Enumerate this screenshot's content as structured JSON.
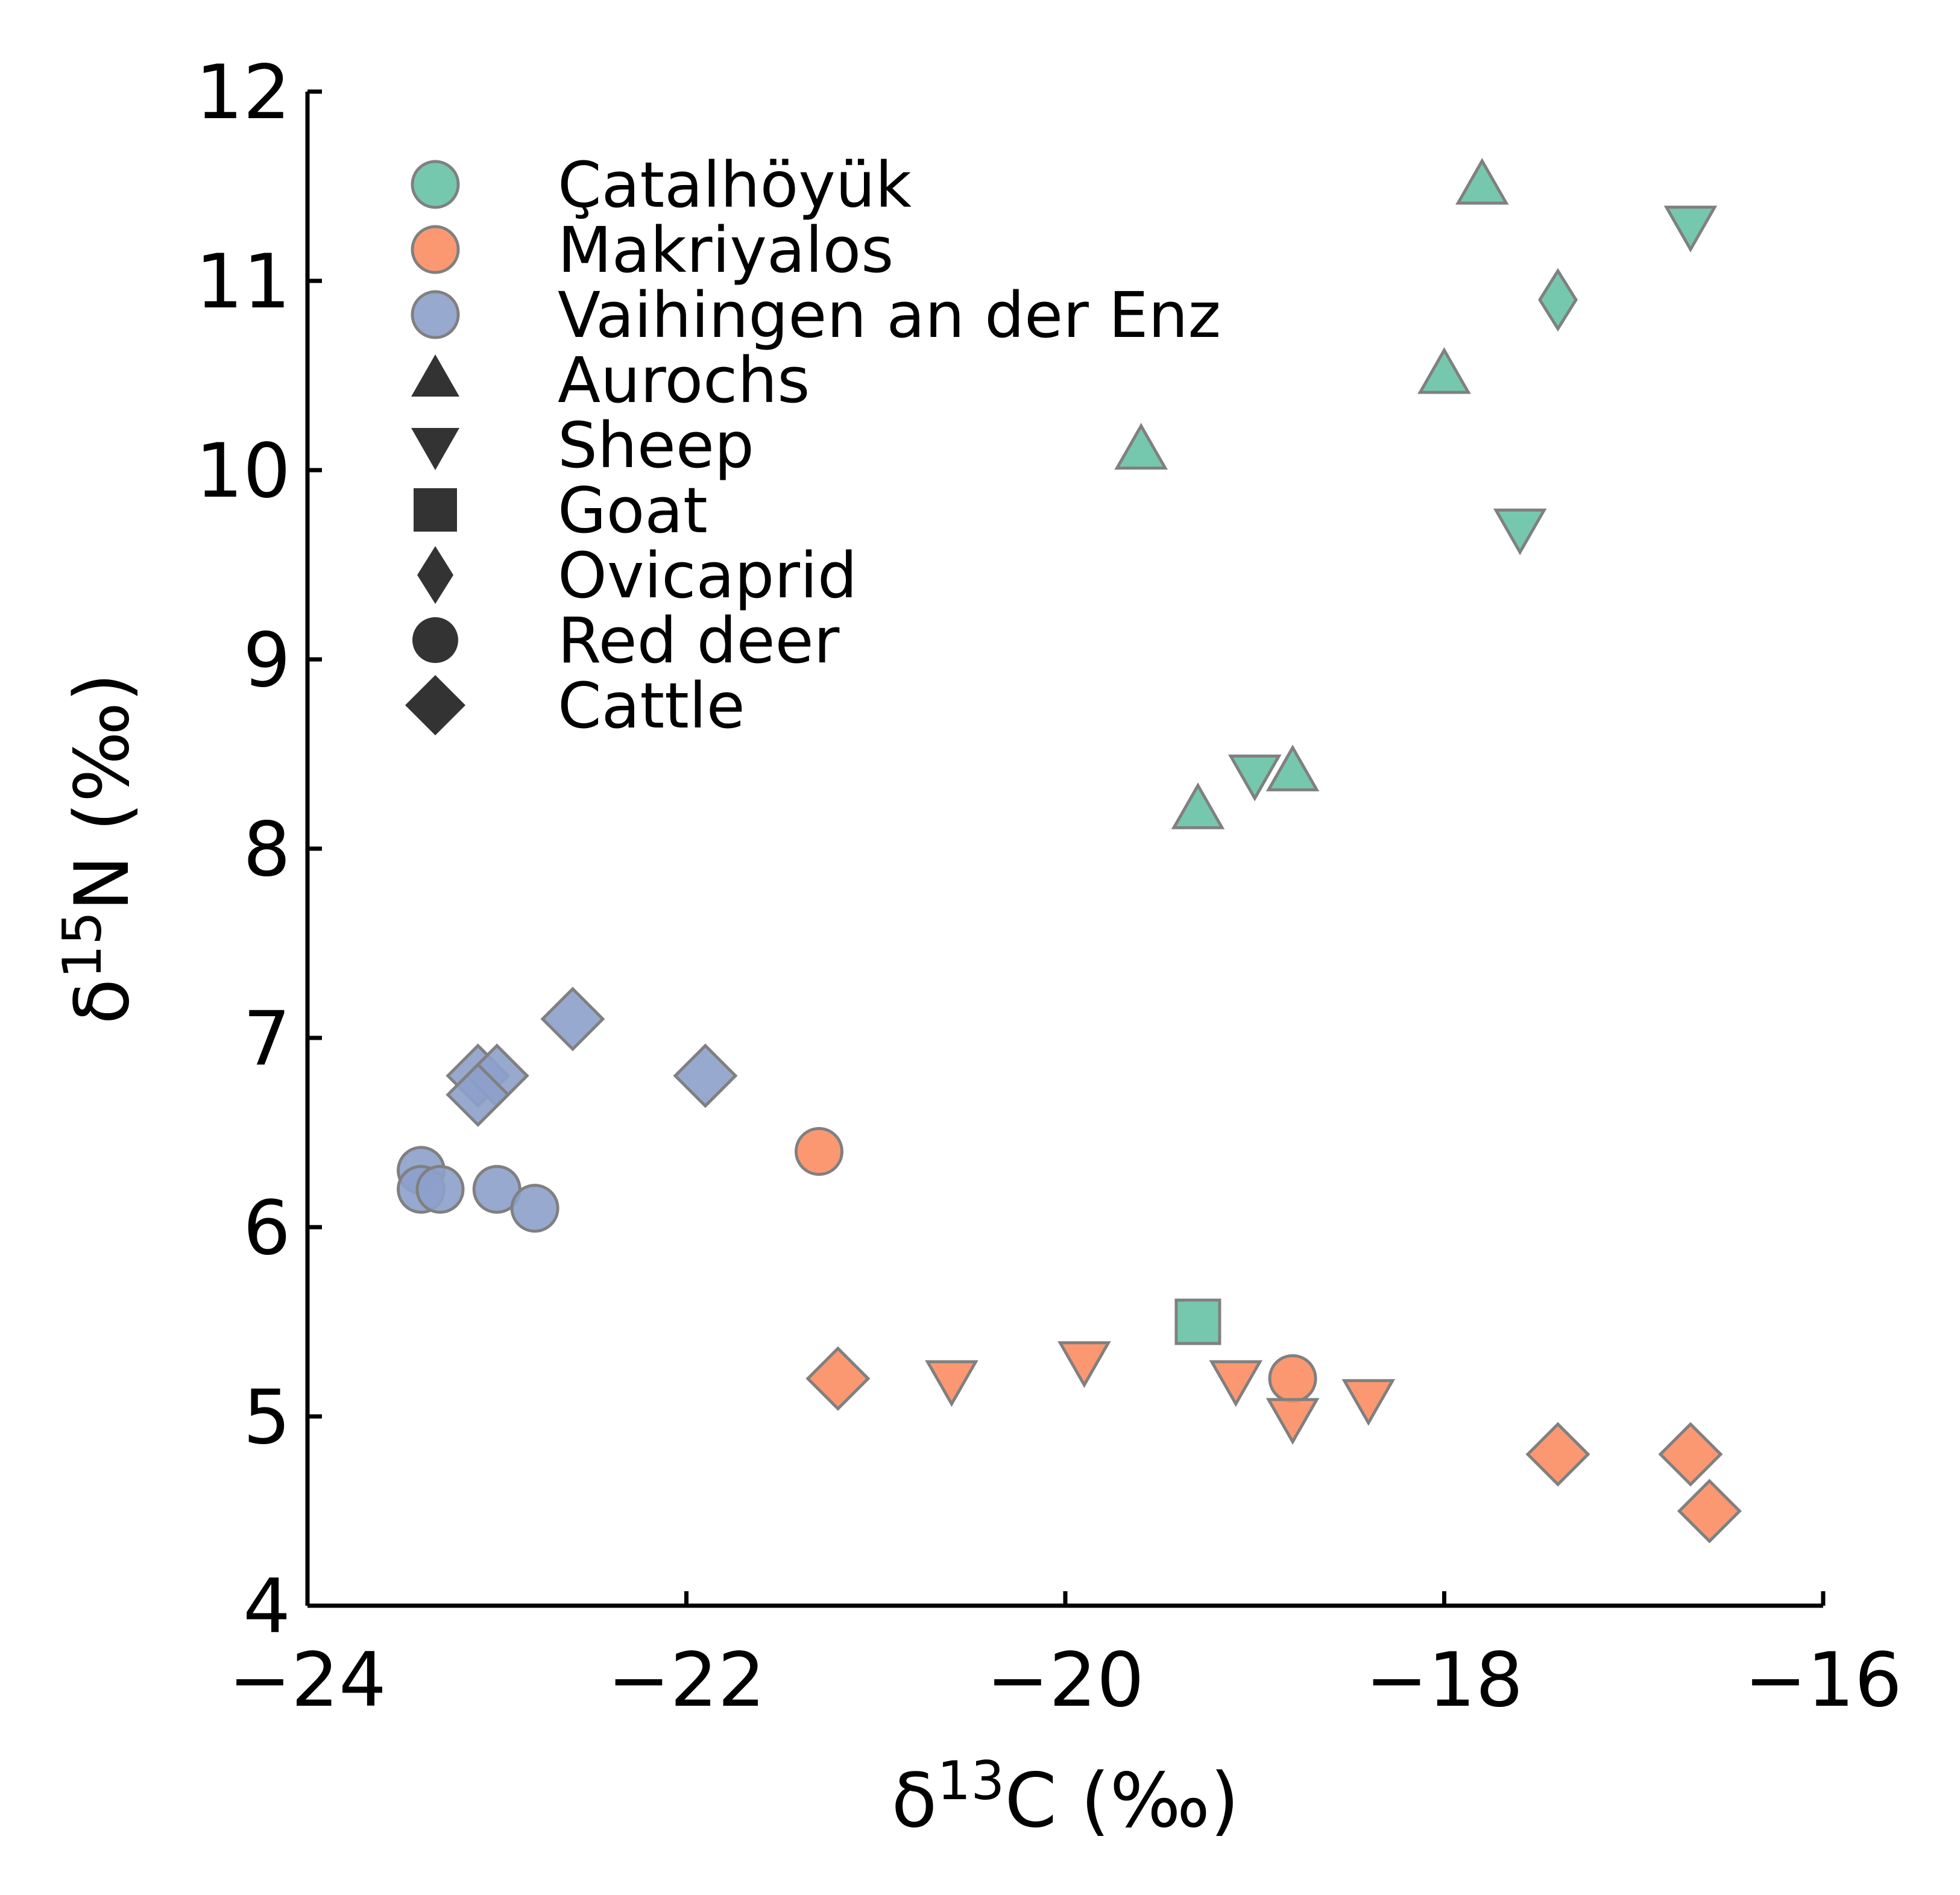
{
  "chart_data": {
    "type": "scatter",
    "xlabel": "δ13C (‰)",
    "ylabel": "δ15N (‰)",
    "xlabel_parts": {
      "prefix": "δ",
      "sup": "13",
      "suffix": "C (‰)"
    },
    "ylabel_parts": {
      "prefix": "δ",
      "sup": "15",
      "suffix": "N (‰)"
    },
    "xlim": [
      -24,
      -16
    ],
    "ylim": [
      4,
      12
    ],
    "xticks": [
      -24,
      -22,
      -20,
      -18,
      -16
    ],
    "xtick_labels": [
      "−24",
      "−22",
      "−20",
      "−18",
      "−16"
    ],
    "yticks": [
      4,
      5,
      6,
      7,
      8,
      9,
      10,
      11,
      12
    ],
    "ytick_labels": [
      "4",
      "5",
      "6",
      "7",
      "8",
      "9",
      "10",
      "11",
      "12"
    ],
    "grid": false,
    "legend_position": "top-left",
    "site_legend": [
      {
        "name": "Çatalhöyük",
        "color": "#66c2a5"
      },
      {
        "name": "Makriyalos",
        "color": "#fc8d62"
      },
      {
        "name": "Vaihingen an der Enz",
        "color": "#8da0cb"
      }
    ],
    "species_legend": [
      {
        "name": "Aurochs",
        "marker": "triangle-up"
      },
      {
        "name": "Sheep",
        "marker": "triangle-down"
      },
      {
        "name": "Goat",
        "marker": "square"
      },
      {
        "name": "Ovicaprid",
        "marker": "thin-diamond"
      },
      {
        "name": "Red deer",
        "marker": "circle"
      },
      {
        "name": "Cattle",
        "marker": "diamond"
      }
    ],
    "marker_edge_color": "#808080",
    "legend_marker_color": "#333333",
    "points": [
      {
        "site": "Çatalhöyük",
        "species": "Aurochs",
        "x": -17.8,
        "y": 11.5
      },
      {
        "site": "Çatalhöyük",
        "species": "Aurochs",
        "x": -18.0,
        "y": 10.5
      },
      {
        "site": "Çatalhöyük",
        "species": "Aurochs",
        "x": -19.6,
        "y": 10.1
      },
      {
        "site": "Çatalhöyük",
        "species": "Aurochs",
        "x": -19.3,
        "y": 8.2
      },
      {
        "site": "Çatalhöyük",
        "species": "Aurochs",
        "x": -18.8,
        "y": 8.4
      },
      {
        "site": "Çatalhöyük",
        "species": "Sheep",
        "x": -16.7,
        "y": 11.3
      },
      {
        "site": "Çatalhöyük",
        "species": "Sheep",
        "x": -17.6,
        "y": 9.7
      },
      {
        "site": "Çatalhöyük",
        "species": "Sheep",
        "x": -19.0,
        "y": 8.4
      },
      {
        "site": "Çatalhöyük",
        "species": "Ovicaprid",
        "x": -17.4,
        "y": 10.9
      },
      {
        "site": "Çatalhöyük",
        "species": "Goat",
        "x": -19.3,
        "y": 5.5
      },
      {
        "site": "Makriyalos",
        "species": "Red deer",
        "x": -21.3,
        "y": 6.4
      },
      {
        "site": "Makriyalos",
        "species": "Red deer",
        "x": -18.8,
        "y": 5.2
      },
      {
        "site": "Makriyalos",
        "species": "Cattle",
        "x": -21.2,
        "y": 5.2
      },
      {
        "site": "Makriyalos",
        "species": "Cattle",
        "x": -17.4,
        "y": 4.8
      },
      {
        "site": "Makriyalos",
        "species": "Cattle",
        "x": -16.7,
        "y": 4.8
      },
      {
        "site": "Makriyalos",
        "species": "Cattle",
        "x": -16.6,
        "y": 4.5
      },
      {
        "site": "Makriyalos",
        "species": "Sheep",
        "x": -20.6,
        "y": 5.2
      },
      {
        "site": "Makriyalos",
        "species": "Sheep",
        "x": -19.9,
        "y": 5.3
      },
      {
        "site": "Makriyalos",
        "species": "Sheep",
        "x": -19.1,
        "y": 5.2
      },
      {
        "site": "Makriyalos",
        "species": "Sheep",
        "x": -18.8,
        "y": 5.0
      },
      {
        "site": "Makriyalos",
        "species": "Sheep",
        "x": -18.4,
        "y": 5.1
      },
      {
        "site": "Vaihingen an der Enz",
        "species": "Cattle",
        "x": -22.6,
        "y": 7.1
      },
      {
        "site": "Vaihingen an der Enz",
        "species": "Cattle",
        "x": -21.9,
        "y": 6.8
      },
      {
        "site": "Vaihingen an der Enz",
        "species": "Cattle",
        "x": -23.1,
        "y": 6.8
      },
      {
        "site": "Vaihingen an der Enz",
        "species": "Cattle",
        "x": -23.0,
        "y": 6.8
      },
      {
        "site": "Vaihingen an der Enz",
        "species": "Cattle",
        "x": -23.1,
        "y": 6.7
      },
      {
        "site": "Vaihingen an der Enz",
        "species": "Red deer",
        "x": -23.4,
        "y": 6.3
      },
      {
        "site": "Vaihingen an der Enz",
        "species": "Red deer",
        "x": -23.4,
        "y": 6.2
      },
      {
        "site": "Vaihingen an der Enz",
        "species": "Red deer",
        "x": -23.3,
        "y": 6.2
      },
      {
        "site": "Vaihingen an der Enz",
        "species": "Red deer",
        "x": -23.0,
        "y": 6.2
      },
      {
        "site": "Vaihingen an der Enz",
        "species": "Red deer",
        "x": -22.8,
        "y": 6.1
      }
    ]
  }
}
